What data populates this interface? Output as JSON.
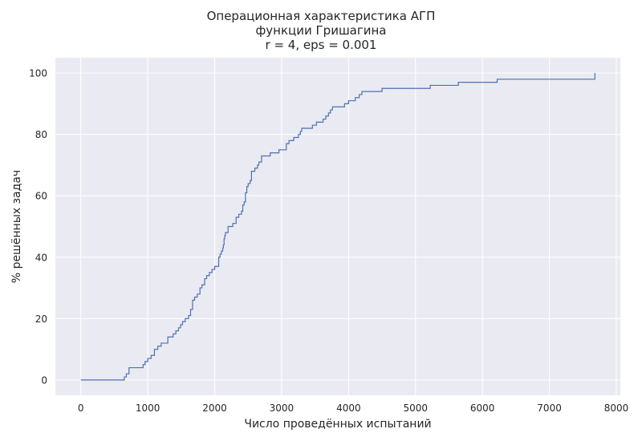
{
  "chart_data": {
    "type": "line",
    "style": "step",
    "title_lines": [
      "Операционная характеристика АГП",
      "функции Гришагина",
      "r = 4, eps = 0.001"
    ],
    "xlabel": "Число проведённых испытаний",
    "ylabel": "% решённых задач",
    "xlim": [
      -380,
      8060
    ],
    "ylim": [
      -5,
      105
    ],
    "xticks": [
      0,
      1000,
      2000,
      3000,
      4000,
      5000,
      6000,
      7000,
      8000
    ],
    "yticks": [
      0,
      20,
      40,
      60,
      80,
      100
    ],
    "grid": true,
    "background": "#eaeaf2",
    "grid_color": "#ffffff",
    "line_color": "#4c72b0",
    "series": [
      {
        "x": [
          0,
          650,
          680,
          720,
          800,
          930,
          960,
          1000,
          1050,
          1100,
          1150,
          1200,
          1300,
          1380,
          1420,
          1460,
          1490,
          1520,
          1560,
          1610,
          1640,
          1670,
          1700,
          1740,
          1780,
          1810,
          1850,
          1880,
          1920,
          1960,
          2000,
          2060,
          2080,
          2100,
          2120,
          2130,
          2140,
          2150,
          2160,
          2200,
          2270,
          2320,
          2360,
          2400,
          2420,
          2440,
          2460,
          2480,
          2500,
          2530,
          2550,
          2600,
          2640,
          2660,
          2700,
          2830,
          2880,
          2960,
          3070,
          3110,
          3180,
          3250,
          3280,
          3300,
          3460,
          3520,
          3620,
          3660,
          3700,
          3730,
          3760,
          3940,
          4000,
          4100,
          4160,
          4200,
          4500,
          5220,
          5640,
          6220,
          7680,
          7680
        ],
        "y": [
          0,
          1,
          2,
          4,
          4,
          5,
          6,
          7,
          8,
          10,
          11,
          12,
          14,
          15,
          16,
          17,
          18,
          19,
          20,
          21,
          23,
          26,
          27,
          28,
          30,
          31,
          33,
          34,
          35,
          36,
          37,
          40,
          41,
          42,
          43,
          44,
          46,
          47,
          48,
          50,
          51,
          53,
          54,
          55,
          57,
          58,
          61,
          63,
          64,
          65,
          68,
          69,
          70,
          71,
          73,
          74,
          74,
          75,
          77,
          78,
          79,
          80,
          81,
          82,
          83,
          84,
          85,
          86,
          87,
          88,
          89,
          90,
          91,
          92,
          93,
          94,
          95,
          96,
          97,
          98,
          99,
          100
        ]
      }
    ]
  }
}
